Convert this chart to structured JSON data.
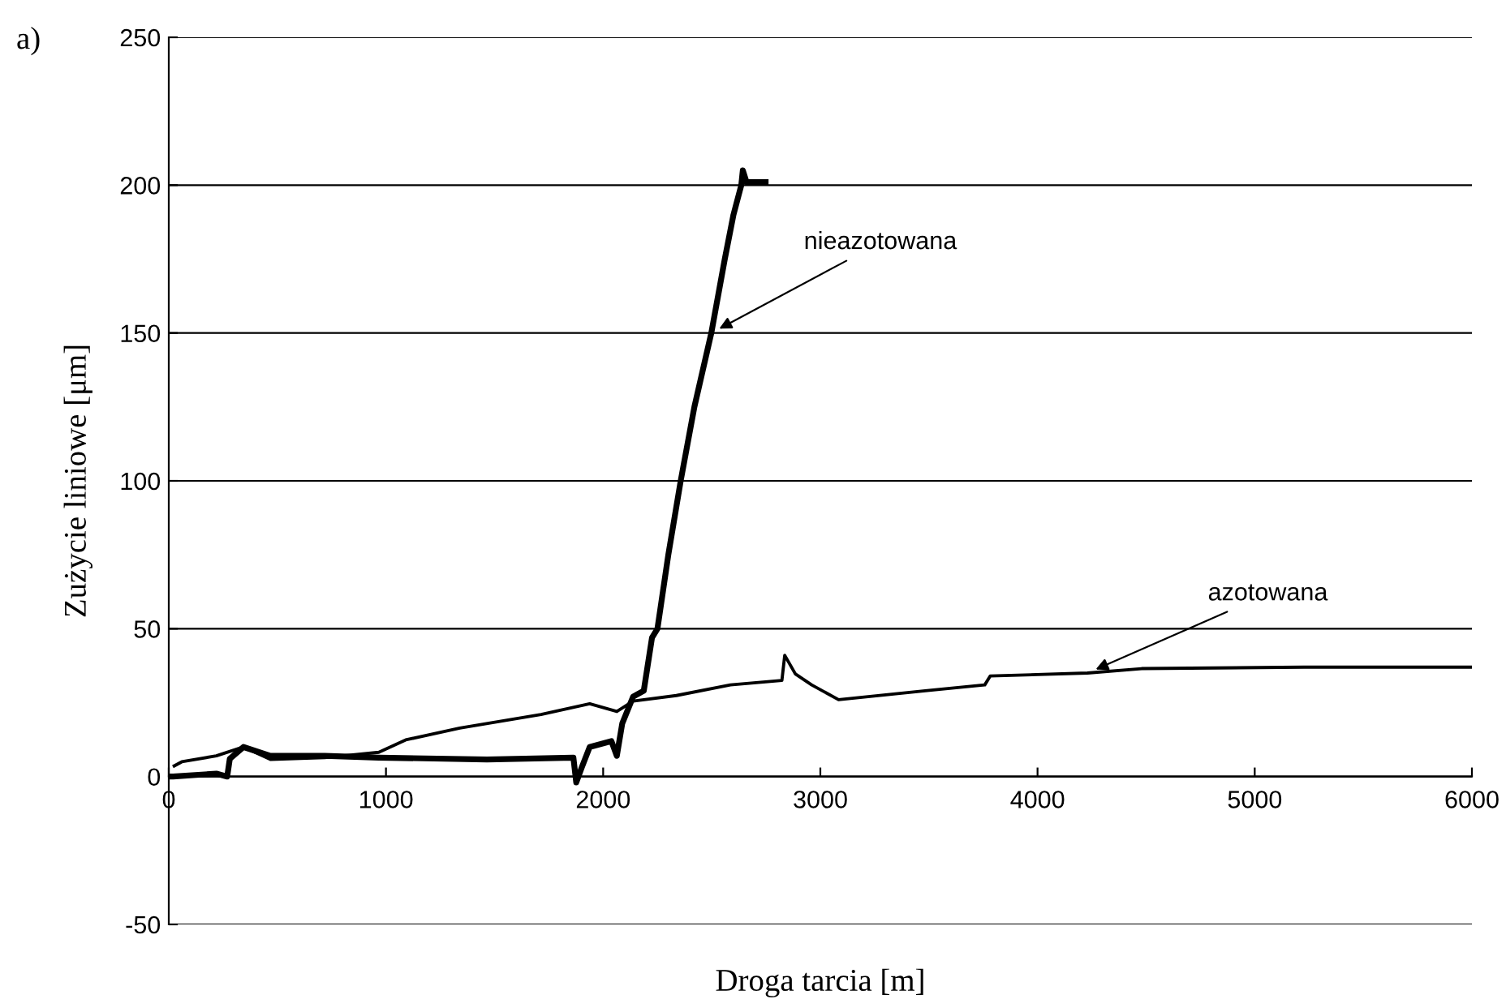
{
  "chart_data": {
    "type": "line",
    "xlabel": "Droga tarcia [m]",
    "ylabel": "Zużycie liniowe [μm]",
    "xlim": [
      0,
      6000
    ],
    "xticks": [
      0,
      1000,
      2000,
      3000,
      4000,
      5000,
      6000
    ],
    "ylim": [
      -50,
      250
    ],
    "yticks": [
      -50,
      0,
      50,
      100,
      150,
      200,
      250
    ],
    "grid": "y",
    "legend": false,
    "series": [
      {
        "name": "nieazotowana",
        "color": "#000000",
        "x": [
          0,
          20,
          219,
          269,
          281,
          344,
          468,
          718,
          967,
          1465,
          1863,
          1876,
          1901,
          1938,
          2038,
          2063,
          2088,
          2138,
          2187,
          2225,
          2250,
          2300,
          2357,
          2420,
          2498,
          2560,
          2600,
          2636,
          2643,
          2660,
          2748
        ],
        "values": [
          0,
          0,
          1,
          0,
          6,
          10,
          7,
          7,
          6.4,
          5.8,
          6.4,
          -2,
          3,
          10,
          12,
          7,
          18,
          27,
          29,
          47,
          50,
          75,
          100,
          125,
          150,
          175,
          190,
          200,
          205,
          201,
          201
        ]
      },
      {
        "name": "azotowana",
        "color": "#000000",
        "x": [
          25,
          60,
          219,
          344,
          468,
          718,
          967,
          1091,
          1340,
          1714,
          1938,
          2063,
          2138,
          2337,
          2586,
          2823,
          2836,
          2885,
          2960,
          3084,
          3483,
          3757,
          3782,
          4230,
          4479,
          5227,
          6000
        ],
        "values": [
          3.6,
          5,
          7,
          10,
          5.8,
          6.4,
          8.2,
          12.4,
          16.4,
          21,
          24.6,
          22,
          25.5,
          27.4,
          31,
          32.5,
          41,
          34.7,
          31,
          26,
          29,
          31,
          34,
          35,
          36.5,
          37,
          37
        ]
      }
    ],
    "annotations": [
      "a)"
    ]
  }
}
